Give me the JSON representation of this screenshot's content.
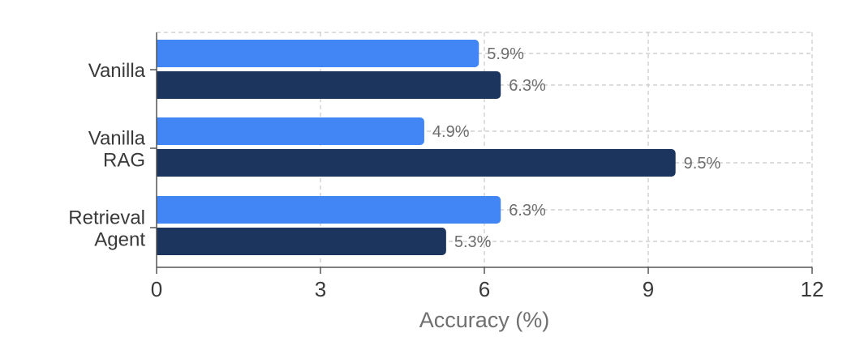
{
  "chart_data": {
    "type": "bar",
    "orientation": "horizontal",
    "categories": [
      [
        "Vanilla"
      ],
      [
        "Vanilla",
        "RAG"
      ],
      [
        "Retrieval",
        "Agent"
      ]
    ],
    "series": [
      {
        "values": [
          5.9,
          4.9,
          6.3
        ],
        "labels": [
          "5.9%",
          "4.9%",
          "6.3%"
        ],
        "color": "#4285f4"
      },
      {
        "values": [
          6.3,
          9.5,
          5.3
        ],
        "labels": [
          "6.3%",
          "9.5%",
          "5.3%"
        ],
        "color": "#1c355e"
      }
    ],
    "xlabel": "Accuracy (%)",
    "ylabel": "",
    "title": "",
    "xlim": [
      0,
      12
    ],
    "xticks": [
      0,
      3,
      6,
      9,
      12
    ],
    "xtick_labels": [
      "0",
      "3",
      "6",
      "9",
      "12"
    ],
    "grid": true,
    "legend": "none",
    "colors": {
      "axis": "#555555",
      "grid": "#c8c8c8",
      "text": "#3a3a3a",
      "value_label": "#6e6e6e",
      "xlabel": "#707070"
    }
  }
}
